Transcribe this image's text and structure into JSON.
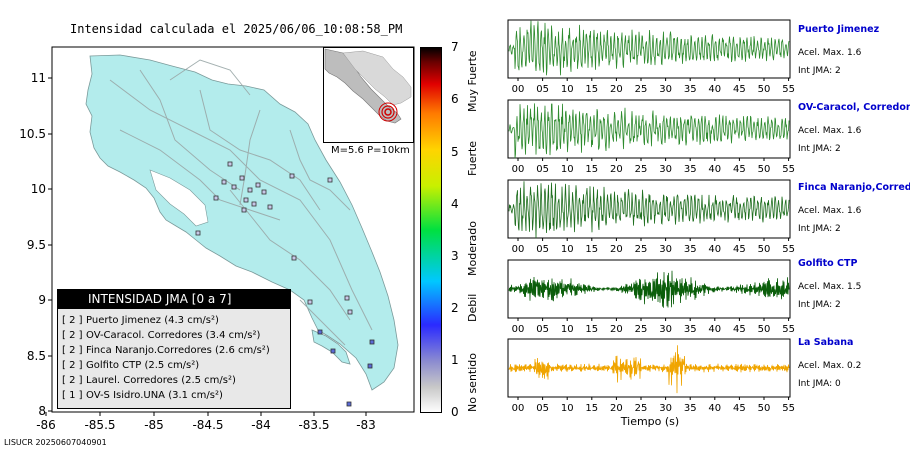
{
  "title": "Intensidad calculada el 2025/06/06_10:08:58_PM",
  "footer_code": "LISUCR 20250607040901",
  "map": {
    "lat_ticks": [
      "11",
      "10.5",
      "10",
      "9.5",
      "9",
      "8.5",
      "8"
    ],
    "lon_ticks": [
      "-86",
      "-85.5",
      "-85",
      "-84.5",
      "-84",
      "-83.5",
      "-83"
    ],
    "inset_label": "M=5.6 P=10km",
    "land_color": "#b3ecec",
    "sea_color": "#ffffff"
  },
  "colorbar": {
    "ticks": [
      "0",
      "1",
      "2",
      "3",
      "4",
      "5",
      "6",
      "7"
    ],
    "categories": [
      "No sentido",
      "Debil",
      "Moderado",
      "Fuerte",
      "Muy Fuerte"
    ]
  },
  "legend": {
    "title": "INTENSIDAD JMA [0 a 7]",
    "entries": [
      {
        "level": "[ 2 ]",
        "text": "Puerto Jimenez (4.3 cm/s²)"
      },
      {
        "level": "[ 2 ]",
        "text": "OV-Caracol. Corredores (3.4 cm/s²)"
      },
      {
        "level": "[ 2 ]",
        "text": "Finca Naranjo.Corredores (2.6 cm/s²)"
      },
      {
        "level": "[ 2 ]",
        "text": "Golfito CTP (2.5 cm/s²)"
      },
      {
        "level": "[ 2 ]",
        "text": "Laurel. Corredores (2.5 cm/s²)"
      },
      {
        "level": "[ 1 ]",
        "text": "OV-S Isidro.UNA (3.1 cm/s²)"
      }
    ]
  },
  "seismograms": {
    "time_ticks": [
      "00",
      "05",
      "10",
      "15",
      "20",
      "25",
      "30",
      "35",
      "40",
      "45",
      "50",
      "55"
    ],
    "xlabel": "Tiempo (s)",
    "stations": [
      {
        "name": "Puerto Jimenez",
        "accel": "Acel. Max. 1.6",
        "int": "Int JMA: 2",
        "color": "#2e8b2e"
      },
      {
        "name": "OV-Caracol, Corredores",
        "accel": "Acel. Max. 1.6",
        "int": "Int JMA: 2",
        "color": "#2e8b2e"
      },
      {
        "name": "Finca Naranjo,Corredores",
        "accel": "Acel. Max. 1.6",
        "int": "Int JMA: 2",
        "color": "#1f6f1f"
      },
      {
        "name": "Golfito CTP",
        "accel": "Acel. Max. 1.5",
        "int": "Int JMA: 2",
        "color": "#0b5e0b"
      },
      {
        "name": "La Sabana",
        "accel": "Acel. Max. 0.2",
        "int": "Int JMA: 0",
        "color": "#f0a500"
      }
    ]
  }
}
